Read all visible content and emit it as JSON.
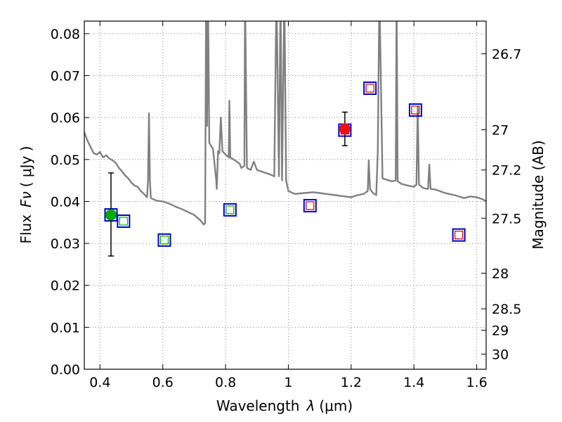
{
  "chart_data": {
    "type": "scatter",
    "xlabel_main": "Wavelength",
    "xlabel_symbol": "λ",
    "xlabel_unit": "(μm)",
    "ylabel_main": "Flux",
    "ylabel_symbol": "Fν",
    "ylabel_unit": "( μJy )",
    "y2label": "Magnitude (AB)",
    "xlim": [
      0.35,
      1.63
    ],
    "ylim": [
      0.0,
      0.083
    ],
    "x_ticks": [
      0.4,
      0.6,
      0.8,
      1.0,
      1.2,
      1.4,
      1.6
    ],
    "x_tick_labels": [
      "0.4",
      "0.6",
      "0.8",
      "1",
      "1.2",
      "1.4",
      "1.6"
    ],
    "y_ticks": [
      0.0,
      0.01,
      0.02,
      0.03,
      0.04,
      0.05,
      0.06,
      0.07,
      0.08
    ],
    "y_tick_labels": [
      "0.00",
      "0.01",
      "0.02",
      "0.03",
      "0.04",
      "0.05",
      "0.06",
      "0.07",
      "0.08"
    ],
    "grid": true,
    "magnitude_ticks": [
      {
        "label": "26.7",
        "flux": 0.0752
      },
      {
        "label": "27",
        "flux": 0.0571
      },
      {
        "label": "27.2",
        "flux": 0.0475
      },
      {
        "label": "27.5",
        "flux": 0.036
      },
      {
        "label": "28",
        "flux": 0.0229
      },
      {
        "label": "28.5",
        "flux": 0.0144
      },
      {
        "label": "29",
        "flux": 0.0093
      },
      {
        "label": "30",
        "flux": 0.0036
      }
    ],
    "colors": {
      "spectrum": "#808080",
      "band_box": "#0000cc",
      "model_optical": "#00aa00",
      "model_nir": "#cc0000",
      "observed_optical": "#00aa00",
      "observed_nir": "#ee1111",
      "grid": "#888888"
    },
    "series": [
      {
        "type": "line",
        "points": [
          [
            0.35,
            0.0565
          ],
          [
            0.36,
            0.0545
          ],
          [
            0.37,
            0.053
          ],
          [
            0.38,
            0.0515
          ],
          [
            0.39,
            0.0512
          ],
          [
            0.4,
            0.0518
          ],
          [
            0.41,
            0.0505
          ],
          [
            0.42,
            0.051
          ],
          [
            0.43,
            0.0502
          ],
          [
            0.44,
            0.0498
          ],
          [
            0.45,
            0.0492
          ],
          [
            0.46,
            0.048
          ],
          [
            0.47,
            0.0472
          ],
          [
            0.48,
            0.0462
          ],
          [
            0.49,
            0.0455
          ],
          [
            0.5,
            0.0445
          ],
          [
            0.51,
            0.0438
          ],
          [
            0.52,
            0.0435
          ],
          [
            0.53,
            0.0425
          ],
          [
            0.54,
            0.0418
          ],
          [
            0.55,
            0.041
          ],
          [
            0.553,
            0.045
          ],
          [
            0.556,
            0.061
          ],
          [
            0.559,
            0.045
          ],
          [
            0.562,
            0.0408
          ],
          [
            0.58,
            0.0402
          ],
          [
            0.6,
            0.04
          ],
          [
            0.62,
            0.0395
          ],
          [
            0.64,
            0.0388
          ],
          [
            0.66,
            0.0382
          ],
          [
            0.68,
            0.0375
          ],
          [
            0.7,
            0.0368
          ],
          [
            0.72,
            0.0355
          ],
          [
            0.73,
            0.0345
          ],
          [
            0.735,
            0.0348
          ],
          [
            0.738,
            0.09
          ],
          [
            0.741,
            0.058
          ],
          [
            0.744,
            0.09
          ],
          [
            0.748,
            0.054
          ],
          [
            0.76,
            0.0525
          ],
          [
            0.77,
            0.0452
          ],
          [
            0.772,
            0.043
          ],
          [
            0.776,
            0.052
          ],
          [
            0.78,
            0.0515
          ],
          [
            0.785,
            0.06
          ],
          [
            0.79,
            0.052
          ],
          [
            0.8,
            0.0512
          ],
          [
            0.81,
            0.0505
          ],
          [
            0.812,
            0.064
          ],
          [
            0.815,
            0.0505
          ],
          [
            0.83,
            0.0498
          ],
          [
            0.845,
            0.049
          ],
          [
            0.85,
            0.048
          ],
          [
            0.86,
            0.0485
          ],
          [
            0.862,
            0.09
          ],
          [
            0.868,
            0.048
          ],
          [
            0.88,
            0.0475
          ],
          [
            0.89,
            0.0495
          ],
          [
            0.9,
            0.0475
          ],
          [
            0.92,
            0.047
          ],
          [
            0.94,
            0.0465
          ],
          [
            0.955,
            0.046
          ],
          [
            0.962,
            0.09
          ],
          [
            0.97,
            0.046
          ],
          [
            0.975,
            0.09
          ],
          [
            0.98,
            0.045
          ],
          [
            0.987,
            0.09
          ],
          [
            0.993,
            0.045
          ],
          [
            1.0,
            0.0425
          ],
          [
            1.02,
            0.0418
          ],
          [
            1.05,
            0.042
          ],
          [
            1.08,
            0.0422
          ],
          [
            1.1,
            0.042
          ],
          [
            1.12,
            0.0418
          ],
          [
            1.15,
            0.0415
          ],
          [
            1.18,
            0.0412
          ],
          [
            1.2,
            0.041
          ],
          [
            1.22,
            0.0415
          ],
          [
            1.24,
            0.0418
          ],
          [
            1.253,
            0.0425
          ],
          [
            1.256,
            0.0498
          ],
          [
            1.26,
            0.043
          ],
          [
            1.27,
            0.042
          ],
          [
            1.28,
            0.0415
          ],
          [
            1.285,
            0.052
          ],
          [
            1.29,
            0.09
          ],
          [
            1.3,
            0.0455
          ],
          [
            1.33,
            0.0448
          ],
          [
            1.342,
            0.045
          ],
          [
            1.345,
            0.09
          ],
          [
            1.348,
            0.0448
          ],
          [
            1.36,
            0.0442
          ],
          [
            1.38,
            0.0438
          ],
          [
            1.4,
            0.0435
          ],
          [
            1.408,
            0.044
          ],
          [
            1.412,
            0.0625
          ],
          [
            1.416,
            0.044
          ],
          [
            1.43,
            0.0432
          ],
          [
            1.445,
            0.043
          ],
          [
            1.449,
            0.0488
          ],
          [
            1.453,
            0.043
          ],
          [
            1.47,
            0.0428
          ],
          [
            1.5,
            0.042
          ],
          [
            1.53,
            0.0415
          ],
          [
            1.56,
            0.0408
          ],
          [
            1.58,
            0.0412
          ],
          [
            1.6,
            0.041
          ],
          [
            1.62,
            0.0405
          ],
          [
            1.63,
            0.04
          ]
        ]
      },
      {
        "type": "band-model-boxes",
        "points": [
          {
            "x": 0.435,
            "y": 0.0368,
            "inner": "green"
          },
          {
            "x": 0.475,
            "y": 0.0353,
            "inner": "green"
          },
          {
            "x": 0.605,
            "y": 0.0308,
            "inner": "green"
          },
          {
            "x": 0.814,
            "y": 0.038,
            "inner": "green"
          },
          {
            "x": 1.069,
            "y": 0.039,
            "inner": "red"
          },
          {
            "x": 1.18,
            "y": 0.057,
            "inner": "red"
          },
          {
            "x": 1.26,
            "y": 0.067,
            "inner": "red"
          },
          {
            "x": 1.405,
            "y": 0.0618,
            "inner": "red"
          },
          {
            "x": 1.543,
            "y": 0.032,
            "inner": "red"
          }
        ]
      },
      {
        "type": "observed-points",
        "points": [
          {
            "x": 0.435,
            "y": 0.0368,
            "yerr_low": 0.027,
            "yerr_high": 0.0468,
            "color": "green"
          },
          {
            "x": 1.18,
            "y": 0.0573,
            "yerr_low": 0.0533,
            "yerr_high": 0.0613,
            "color": "red"
          }
        ]
      }
    ]
  }
}
